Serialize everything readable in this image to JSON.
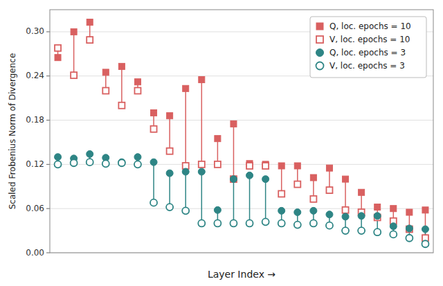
{
  "chart_data": {
    "type": "dumbbell",
    "xlabel": "Layer Index →",
    "ylabel": "Scaled Frobenius Norm of Divergence",
    "categories": [
      null,
      null,
      null,
      null,
      null,
      null,
      null,
      null,
      null,
      null,
      null,
      null,
      null,
      null,
      null,
      null,
      null,
      null,
      null,
      null,
      null,
      null,
      null,
      null
    ],
    "series": [
      {
        "name": "Q, loc. epochs = 10",
        "color": "#d96060",
        "marker": "square",
        "values": [
          0.265,
          0.3,
          0.313,
          0.245,
          0.253,
          0.232,
          0.19,
          0.186,
          0.223,
          0.235,
          0.155,
          0.175,
          0.121,
          0.12,
          0.118,
          0.118,
          0.102,
          0.115,
          0.1,
          0.082,
          0.062,
          0.06,
          0.055,
          0.058
        ]
      },
      {
        "name": "V, loc. epochs = 10",
        "color": "#d96060",
        "marker": "open-square",
        "values": [
          0.278,
          0.241,
          0.289,
          0.22,
          0.2,
          0.22,
          0.168,
          0.138,
          0.118,
          0.12,
          0.12,
          0.1,
          0.118,
          0.118,
          0.08,
          0.093,
          0.073,
          0.085,
          0.058,
          0.055,
          0.048,
          0.043,
          0.032,
          0.02
        ]
      },
      {
        "name": "Q, loc. epochs = 3",
        "color": "#2e8585",
        "marker": "circle",
        "values": [
          0.13,
          0.128,
          0.134,
          0.129,
          0.123,
          0.13,
          0.123,
          0.108,
          0.11,
          0.11,
          0.058,
          0.1,
          0.105,
          0.1,
          0.057,
          0.055,
          0.057,
          0.052,
          0.049,
          0.05,
          0.05,
          0.036,
          0.033,
          0.032
        ]
      },
      {
        "name": "V, loc. epochs = 3",
        "color": "#2e8585",
        "marker": "open-circle",
        "values": [
          0.12,
          0.122,
          0.123,
          0.121,
          0.122,
          0.12,
          0.068,
          0.062,
          0.057,
          0.04,
          0.04,
          0.04,
          0.04,
          0.042,
          0.04,
          0.038,
          0.04,
          0.037,
          0.03,
          0.03,
          0.028,
          0.025,
          0.02,
          0.012
        ]
      }
    ],
    "ylim": [
      0.0,
      0.33
    ],
    "yticks": [
      {
        "value": 0,
        "label": "0.00"
      },
      0.06,
      0.12,
      0.18,
      0.24,
      {
        "value": 0.3,
        "label": "0.30"
      }
    ],
    "grid": true,
    "legend": "upper right",
    "tick_labels": "y"
  }
}
